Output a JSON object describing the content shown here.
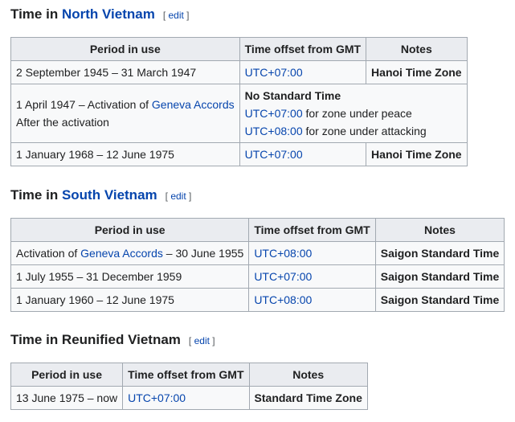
{
  "edit_label": "edit",
  "columns": {
    "period": "Period in use",
    "offset": "Time offset from GMT",
    "notes": "Notes"
  },
  "north": {
    "heading_prefix": "Time in ",
    "heading_link": "North Vietnam",
    "rows": [
      {
        "period": "2 September 1945 – 31 March 1947",
        "offset": "UTC+07:00",
        "notes": "Hanoi Time Zone"
      },
      {
        "period_prefix": "1 April 1947 – Activation of ",
        "period_link": "Geneva Accords",
        "period_line2": "After the activation",
        "notes_title": "No Standard Time",
        "offset1": "UTC+07:00",
        "offset1_text": " for zone under peace",
        "offset2": "UTC+08:00",
        "offset2_text": " for zone under attacking"
      },
      {
        "period": "1 January 1968 – 12 June 1975",
        "offset": "UTC+07:00",
        "notes": "Hanoi Time Zone"
      }
    ]
  },
  "south": {
    "heading_prefix": "Time in ",
    "heading_link": "South Vietnam",
    "rows": [
      {
        "period_prefix": "Activation of ",
        "period_link": "Geneva Accords",
        "period_suffix": " – 30 June 1955",
        "offset": "UTC+08:00",
        "notes": "Saigon Standard Time"
      },
      {
        "period": "1 July 1955 – 31 December 1959",
        "offset": "UTC+07:00",
        "notes": "Saigon Standard Time"
      },
      {
        "period": "1 January 1960 – 12 June 1975",
        "offset": "UTC+08:00",
        "notes": "Saigon Standard Time"
      }
    ]
  },
  "reunified": {
    "heading": "Time in Reunified Vietnam",
    "rows": [
      {
        "period": "13 June 1975 – now",
        "offset": "UTC+07:00",
        "notes": "Standard Time Zone"
      }
    ]
  }
}
